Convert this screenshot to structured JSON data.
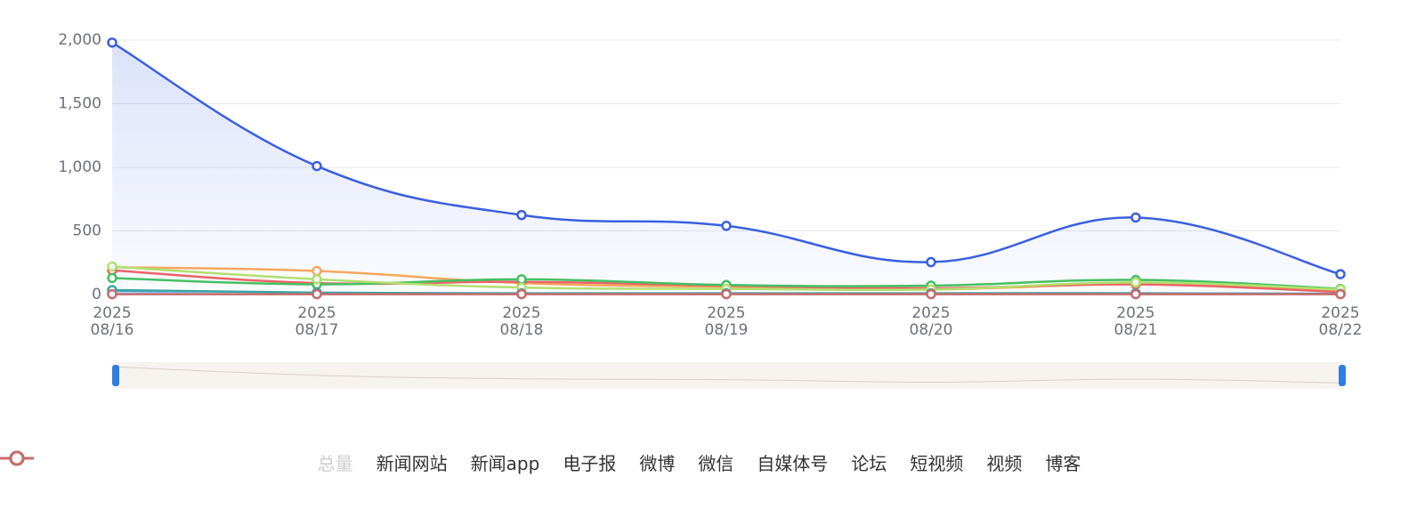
{
  "chart_data": {
    "type": "line",
    "categories": [
      "2025\n08/16",
      "2025\n08/17",
      "2025\n08/18",
      "2025\n08/19",
      "2025\n08/20",
      "2025\n08/21",
      "2025\n08/22"
    ],
    "ylim": [
      0,
      2000
    ],
    "yticks": [
      0,
      500,
      {
        "value": 1000,
        "label": "1,000"
      },
      {
        "value": 1500,
        "label": "1,500"
      },
      {
        "value": 2000,
        "label": "2,000"
      }
    ],
    "grid": true,
    "legend": "bottom",
    "series": [
      {
        "name": "总量",
        "color": "#cccccc",
        "selected": false
      },
      {
        "name": "新闻网站",
        "color": "#5b9bf0",
        "values": [
          30,
          12,
          8,
          8,
          8,
          10,
          6
        ]
      },
      {
        "name": "新闻app",
        "color": "#fbaa5a",
        "values": [
          215,
          185,
          90,
          60,
          40,
          80,
          30
        ]
      },
      {
        "name": "电子报",
        "color": "#7b6be8",
        "values": [
          5,
          5,
          5,
          5,
          5,
          5,
          5
        ]
      },
      {
        "name": "微博",
        "color": "#f06464",
        "values": [
          190,
          90,
          100,
          70,
          50,
          80,
          20
        ]
      },
      {
        "name": "微信",
        "color": "#45c35f",
        "values": [
          130,
          80,
          120,
          75,
          70,
          115,
          45
        ]
      },
      {
        "name": "自媒体号",
        "color": "#3a5fe0",
        "area": true,
        "values": [
          1980,
          1010,
          625,
          540,
          255,
          605,
          160
        ]
      },
      {
        "name": "论坛",
        "color": "#a6d3f7",
        "values": [
          10,
          8,
          6,
          6,
          6,
          8,
          5
        ]
      },
      {
        "name": "短视频",
        "color": "#b5e46b",
        "values": [
          220,
          120,
          55,
          45,
          40,
          95,
          40
        ]
      },
      {
        "name": "视频",
        "color": "#3ba5a0",
        "values": [
          35,
          15,
          10,
          10,
          10,
          10,
          5
        ]
      },
      {
        "name": "博客",
        "color": "#c96b6b",
        "values": [
          3,
          3,
          3,
          3,
          3,
          3,
          3
        ]
      }
    ]
  }
}
